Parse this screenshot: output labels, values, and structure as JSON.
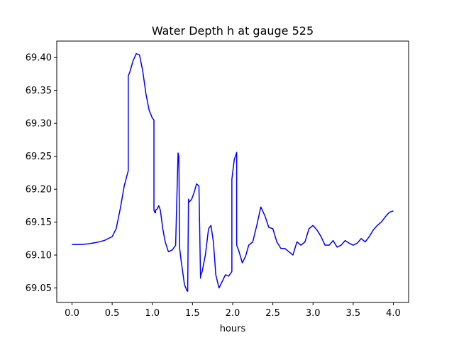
{
  "chart_data": {
    "type": "line",
    "title": "Water Depth h at gauge 525",
    "xlabel": "hours",
    "ylabel": "",
    "xlim": [
      -0.19,
      4.19
    ],
    "ylim": [
      69.028,
      69.425
    ],
    "xticks": [
      0.0,
      0.5,
      1.0,
      1.5,
      2.0,
      2.5,
      3.0,
      3.5,
      4.0
    ],
    "xtick_labels": [
      "0.0",
      "0.5",
      "1.0",
      "1.5",
      "2.0",
      "2.5",
      "3.0",
      "3.5",
      "4.0"
    ],
    "yticks": [
      69.05,
      69.1,
      69.15,
      69.2,
      69.25,
      69.3,
      69.35,
      69.4
    ],
    "ytick_labels": [
      "69.05",
      "69.10",
      "69.15",
      "69.20",
      "69.25",
      "69.30",
      "69.35",
      "69.40"
    ],
    "grid": false,
    "series": [
      {
        "name": "",
        "color": "#0000ff",
        "x": [
          0.0,
          0.1,
          0.2,
          0.3,
          0.4,
          0.5,
          0.55,
          0.6,
          0.65,
          0.7,
          0.7,
          0.72,
          0.76,
          0.8,
          0.84,
          0.88,
          0.92,
          0.96,
          1.0,
          1.02,
          1.02,
          1.03,
          1.04,
          1.04,
          1.06,
          1.08,
          1.1,
          1.13,
          1.16,
          1.2,
          1.25,
          1.29,
          1.32,
          1.33,
          1.34,
          1.34,
          1.36,
          1.4,
          1.43,
          1.44,
          1.45,
          1.45,
          1.47,
          1.49,
          1.52,
          1.55,
          1.58,
          1.6,
          1.6,
          1.62,
          1.66,
          1.7,
          1.73,
          1.76,
          1.79,
          1.83,
          1.87,
          1.91,
          1.95,
          1.99,
          1.99,
          2.02,
          2.05,
          2.05,
          2.08,
          2.12,
          2.16,
          2.2,
          2.25,
          2.3,
          2.35,
          2.4,
          2.45,
          2.5,
          2.55,
          2.6,
          2.65,
          2.7,
          2.75,
          2.8,
          2.85,
          2.9,
          2.95,
          3.0,
          3.05,
          3.1,
          3.15,
          3.2,
          3.25,
          3.3,
          3.35,
          3.4,
          3.45,
          3.5,
          3.55,
          3.6,
          3.65,
          3.7,
          3.75,
          3.8,
          3.85,
          3.9,
          3.95,
          4.0
        ],
        "y": [
          69.116,
          69.116,
          69.117,
          69.119,
          69.122,
          69.128,
          69.14,
          69.17,
          69.205,
          69.228,
          69.372,
          69.378,
          69.395,
          69.406,
          69.404,
          69.38,
          69.345,
          69.32,
          69.308,
          69.305,
          69.168,
          69.165,
          69.164,
          69.168,
          69.17,
          69.175,
          69.168,
          69.14,
          69.12,
          69.105,
          69.108,
          69.115,
          69.255,
          69.25,
          69.115,
          69.11,
          69.09,
          69.055,
          69.046,
          69.045,
          69.185,
          69.18,
          69.182,
          69.185,
          69.195,
          69.208,
          69.205,
          69.065,
          69.068,
          69.075,
          69.1,
          69.14,
          69.145,
          69.12,
          69.07,
          69.05,
          69.06,
          69.07,
          69.068,
          69.075,
          69.215,
          69.245,
          69.256,
          69.115,
          69.105,
          69.088,
          69.098,
          69.115,
          69.12,
          69.145,
          69.173,
          69.16,
          69.142,
          69.14,
          69.12,
          69.11,
          69.11,
          69.105,
          69.1,
          69.12,
          69.115,
          69.12,
          69.14,
          69.145,
          69.138,
          69.128,
          69.115,
          69.115,
          69.122,
          69.112,
          69.115,
          69.122,
          69.118,
          69.115,
          69.118,
          69.125,
          69.12,
          69.128,
          69.138,
          69.145,
          69.15,
          69.158,
          69.165,
          69.167
        ]
      }
    ]
  }
}
